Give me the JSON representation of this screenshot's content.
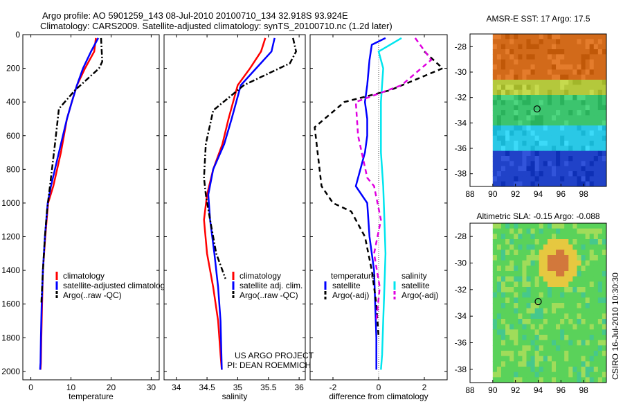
{
  "header": {
    "line1": "Argo profile: AO 5901259_143 08-Jul-2010 20100710_134 32.918S 93.924E",
    "line2": "Climatology: CARS2009. Satellite-adjusted climatology: synTS_20100710.nc (1.2d later)"
  },
  "credit": {
    "line1": "US ARGO PROJECT",
    "line2": "PI: DEAN ROEMMICH",
    "side": "CSIRO 16-Jul-2010 10:30:30"
  },
  "colors": {
    "climatology": "#ff0000",
    "satellite": "#0000ff",
    "argo": "#000000",
    "sal_satellite": "#00e5ee",
    "sal_argo": "#e000e0"
  },
  "chart_data": [
    {
      "type": "line",
      "id": "temperature",
      "xlabel": "temperature",
      "ylabel": "",
      "xlim": [
        -2,
        32
      ],
      "ylim": [
        2050,
        0
      ],
      "xticks": [
        0,
        10,
        20,
        30
      ],
      "yticks": [
        0,
        200,
        400,
        600,
        800,
        1000,
        1200,
        1400,
        1600,
        1800,
        2000
      ],
      "legend_position": "lower-center",
      "series": [
        {
          "name": "climatology",
          "color": "#ff0000",
          "style": "solid",
          "x": [
            16.2,
            15.8,
            13.5,
            11.5,
            10.2,
            9.0,
            7.5,
            5.6,
            4.3,
            3.6,
            3.0,
            2.8,
            2.6,
            2.5,
            2.4
          ],
          "y": [
            20,
            100,
            200,
            300,
            400,
            500,
            700,
            900,
            1000,
            1200,
            1400,
            1600,
            1800,
            1950,
            1990
          ]
        },
        {
          "name": "satellite-adjusted climatology",
          "color": "#0000ff",
          "style": "solid",
          "x": [
            16.8,
            15.0,
            13.0,
            11.5,
            10.2,
            9.0,
            7.0,
            5.0,
            4.2,
            3.5,
            3.0,
            2.7,
            2.5,
            2.4,
            2.3
          ],
          "y": [
            20,
            100,
            200,
            300,
            400,
            500,
            700,
            900,
            1000,
            1200,
            1400,
            1600,
            1800,
            1950,
            1990
          ]
        },
        {
          "name": "Argo(..raw -QC)",
          "color": "#000000",
          "style": "dashdot",
          "x": [
            17.5,
            17.8,
            17.0,
            11.0,
            7.0,
            6.0,
            5.0,
            4.0,
            3.5,
            3.0,
            2.6
          ],
          "y": [
            20,
            160,
            200,
            330,
            440,
            650,
            850,
            1050,
            1200,
            1400,
            1600
          ]
        }
      ]
    },
    {
      "type": "line",
      "id": "salinity",
      "xlabel": "salinity",
      "ylabel": "",
      "xlim": [
        33.8,
        36.1
      ],
      "ylim": [
        2050,
        0
      ],
      "xticks": [
        34,
        34.5,
        35,
        35.5,
        36
      ],
      "yticks": [
        0,
        200,
        400,
        600,
        800,
        1000,
        1200,
        1400,
        1600,
        1800,
        2000
      ],
      "legend_position": "lower-center",
      "series": [
        {
          "name": "climatology",
          "color": "#ff0000",
          "style": "solid",
          "x": [
            35.45,
            35.38,
            35.2,
            35.0,
            34.85,
            34.75,
            34.6,
            34.5,
            34.45,
            34.5,
            34.6,
            34.68,
            34.72,
            34.74
          ],
          "y": [
            20,
            100,
            200,
            300,
            500,
            650,
            800,
            950,
            1100,
            1300,
            1500,
            1700,
            1900,
            1990
          ]
        },
        {
          "name": "satellite adj. clim.",
          "color": "#0000ff",
          "style": "solid",
          "x": [
            35.6,
            35.55,
            35.3,
            35.05,
            34.9,
            34.78,
            34.6,
            34.52,
            34.55,
            34.62,
            34.68,
            34.72,
            34.74
          ],
          "y": [
            20,
            100,
            200,
            300,
            500,
            650,
            800,
            950,
            1100,
            1300,
            1500,
            1700,
            1990
          ]
        },
        {
          "name": "Argo(..raw -QC)",
          "color": "#000000",
          "style": "dashdot",
          "x": [
            35.9,
            35.95,
            35.85,
            35.1,
            34.6,
            34.48,
            34.45,
            34.48,
            34.55,
            34.65,
            34.75,
            34.8
          ],
          "y": [
            20,
            100,
            170,
            300,
            450,
            650,
            850,
            950,
            1100,
            1300,
            1400,
            1450
          ]
        }
      ]
    },
    {
      "type": "line",
      "id": "difference",
      "xlabel": "difference from climatology",
      "ylabel": "",
      "xlim": [
        -3,
        3
      ],
      "ylim": [
        2050,
        0
      ],
      "xticks": [
        -2,
        0,
        2
      ],
      "yticks": [
        0,
        200,
        400,
        600,
        800,
        1000,
        1200,
        1400,
        1600,
        1800,
        2000
      ],
      "legend_position": "lower-center",
      "legend_groups": [
        "temperature",
        "salinity"
      ],
      "series": [
        {
          "name": "satellite",
          "group": "temperature",
          "color": "#0000ff",
          "style": "solid",
          "x": [
            0.3,
            -0.3,
            -0.4,
            -0.5,
            -0.6,
            -0.5,
            -0.5,
            -0.6,
            -0.8,
            -1.0,
            -0.5,
            -0.4,
            -0.2,
            -0.15,
            -0.1,
            -0.1
          ],
          "y": [
            20,
            60,
            150,
            300,
            400,
            500,
            600,
            700,
            800,
            900,
            1000,
            1200,
            1400,
            1600,
            1800,
            1990
          ]
        },
        {
          "name": "Argo(-adj)",
          "group": "temperature",
          "color": "#000000",
          "style": "dashed",
          "x": [
            2.0,
            2.8,
            0.5,
            -1.5,
            -2.8,
            -2.5,
            -2.0,
            -1.2,
            -0.6,
            -0.3,
            -0.1,
            0.0
          ],
          "y": [
            100,
            200,
            330,
            400,
            550,
            900,
            1000,
            1050,
            1200,
            1400,
            1600,
            1800
          ]
        },
        {
          "name": "satellite",
          "group": "salinity",
          "color": "#00e5ee",
          "style": "solid",
          "x": [
            1.0,
            0.0,
            0.2,
            0.1,
            0.1,
            0.2,
            0.25,
            0.3,
            0.25,
            0.2,
            0.15,
            0.1
          ],
          "y": [
            20,
            100,
            200,
            400,
            700,
            900,
            1100,
            1300,
            1500,
            1700,
            1900,
            1990
          ]
        },
        {
          "name": "Argo(-adj)",
          "group": "salinity",
          "color": "#e000e0",
          "style": "dashed",
          "x": [
            1.6,
            2.3,
            1.0,
            -1.0,
            -0.9,
            -0.5,
            -0.2,
            0.1,
            -0.2,
            0.05,
            -0.1
          ],
          "y": [
            20,
            150,
            300,
            400,
            600,
            850,
            900,
            1100,
            1300,
            1500,
            1700
          ]
        }
      ]
    },
    {
      "type": "heatmap",
      "id": "sst-map",
      "title": "AMSR-E SST: 17 Argo: 17.5",
      "xlim": [
        88,
        100
      ],
      "ylim": [
        -39,
        -27
      ],
      "xticks": [
        88,
        90,
        92,
        94,
        96,
        98
      ],
      "yticks": [
        -28,
        -30,
        -32,
        -34,
        -36,
        -38
      ],
      "marker": {
        "lon": 93.9,
        "lat": -32.9
      },
      "bands": [
        {
          "lat_from": -27,
          "lat_to": -30.5,
          "color": "#d26a1a"
        },
        {
          "lat_from": -30.5,
          "lat_to": -32,
          "color": "#b4c83c"
        },
        {
          "lat_from": -32,
          "lat_to": -34.2,
          "color": "#3cc46e"
        },
        {
          "lat_from": -34.2,
          "lat_to": -36.4,
          "color": "#2ac8e6"
        },
        {
          "lat_from": -36.4,
          "lat_to": -39,
          "color": "#2042c8"
        }
      ]
    },
    {
      "type": "heatmap",
      "id": "sla-map",
      "title": "Altimetric SLA: -0.15 Argo: -0.088",
      "xlim": [
        88,
        100
      ],
      "ylim": [
        -39,
        -27
      ],
      "xticks": [
        88,
        90,
        92,
        94,
        96,
        98
      ],
      "yticks": [
        -28,
        -30,
        -32,
        -34,
        -36,
        -38
      ],
      "marker": {
        "lon": 94.0,
        "lat": -32.9
      },
      "bands": [
        {
          "lat_from": -27,
          "lat_to": -39,
          "color": "#5ad25a"
        }
      ]
    }
  ]
}
